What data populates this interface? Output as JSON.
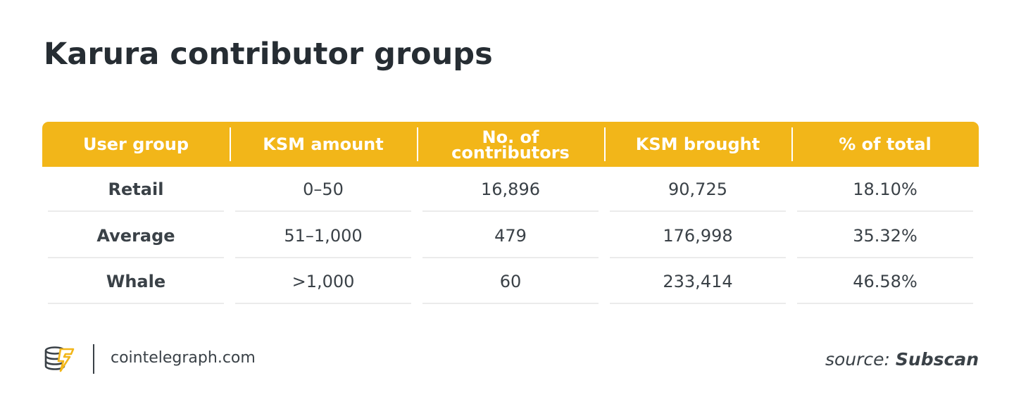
{
  "title": "Karura contributor groups",
  "table": {
    "headers": [
      "User group",
      "KSM amount",
      "No. of\ncontributors",
      "KSM brought",
      "% of total"
    ],
    "rows": [
      [
        "Retail",
        "0–50",
        "16,896",
        "90,725",
        "18.10%"
      ],
      [
        "Average",
        "51–1,000",
        "479",
        "176,998",
        "35.32%"
      ],
      [
        "Whale",
        ">1,000",
        "60",
        "233,414",
        "46.58%"
      ]
    ]
  },
  "footer": {
    "logo_icon": "cointelegraph-logo-icon",
    "site": "cointelegraph.com",
    "source_label": "source:",
    "source_name": "Subscan"
  },
  "colors": {
    "header_bg": "#f2b619",
    "header_text": "#ffffff",
    "text": "#3a4147",
    "title": "#262d33"
  }
}
